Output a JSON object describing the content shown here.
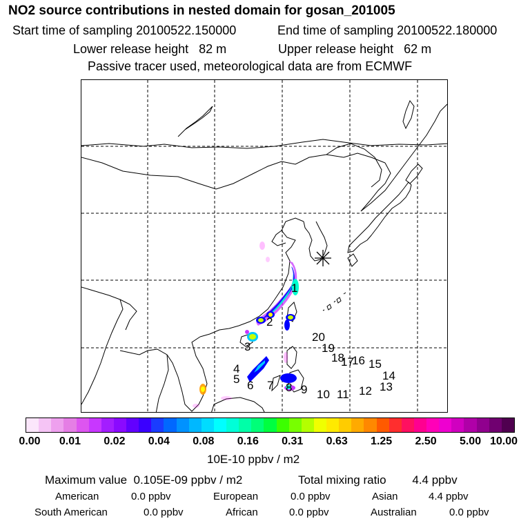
{
  "header": {
    "title": "NO2 source contributions in nested domain for gosan_201005",
    "start_label": "Start time of sampling 20100522.150000",
    "end_label": "End time of sampling 20100522.180000",
    "lower_label": "Lower release height   82 m",
    "upper_label": "Upper release height   62 m",
    "tracer_note": "Passive tracer used, meteorological data are from ECMWF"
  },
  "map": {
    "release_marker": "release-site-asterisk",
    "source_labels": [
      "1",
      "2",
      "3",
      "4",
      "5",
      "6",
      "7",
      "8",
      "9",
      "10",
      "11",
      "12",
      "13",
      "14",
      "15",
      "16",
      "17",
      "18",
      "19",
      "20"
    ],
    "grid_style": "dashed",
    "plume_colors": [
      "#ff00ff",
      "#a000ff",
      "#0000ff",
      "#00c8ff",
      "#00ffd0",
      "#c8ff00",
      "#ffff00"
    ]
  },
  "colorbar": {
    "colors": [
      "#fbe6fb",
      "#f5c4f5",
      "#eea0ee",
      "#e57ee5",
      "#dd55f0",
      "#c837ff",
      "#a31eff",
      "#8a0aff",
      "#6200ff",
      "#3a00ff",
      "#1a3cff",
      "#0068ff",
      "#0092ff",
      "#00b8ff",
      "#00dcff",
      "#00ffff",
      "#00ffd8",
      "#00ffa8",
      "#00ff78",
      "#00ff40",
      "#3cff00",
      "#78ff00",
      "#b4ff00",
      "#f0ff00",
      "#ffea00",
      "#ffcc00",
      "#ffaa00",
      "#ff8800",
      "#ff5a00",
      "#ff2e2e",
      "#ff1060",
      "#ff0090",
      "#ff00b8",
      "#ee00d0",
      "#d000c0",
      "#b000a8",
      "#90008e",
      "#700070",
      "#500050"
    ],
    "ticks": [
      "0.00",
      "0.01",
      "0.02",
      "0.04",
      "0.08",
      "0.16",
      "0.31",
      "0.63",
      "1.25",
      "2.50",
      "5.00",
      "10.00"
    ],
    "unit": "10E-10 ppbv / m2"
  },
  "summary": {
    "max_label": "Maximum value",
    "max_value": "0.105E-09 ppbv / m2",
    "total_label": "Total mixing ratio",
    "total_value": "4.4 ppbv",
    "continents": [
      {
        "name": "American",
        "value": "0.0 ppbv"
      },
      {
        "name": "European",
        "value": "0.0 ppbv"
      },
      {
        "name": "Asian",
        "value": "4.4 ppbv"
      },
      {
        "name": "South American",
        "value": "0.0 ppbv"
      },
      {
        "name": "African",
        "value": "0.0 ppbv"
      },
      {
        "name": "Australian",
        "value": "0.0 ppbv"
      }
    ]
  }
}
